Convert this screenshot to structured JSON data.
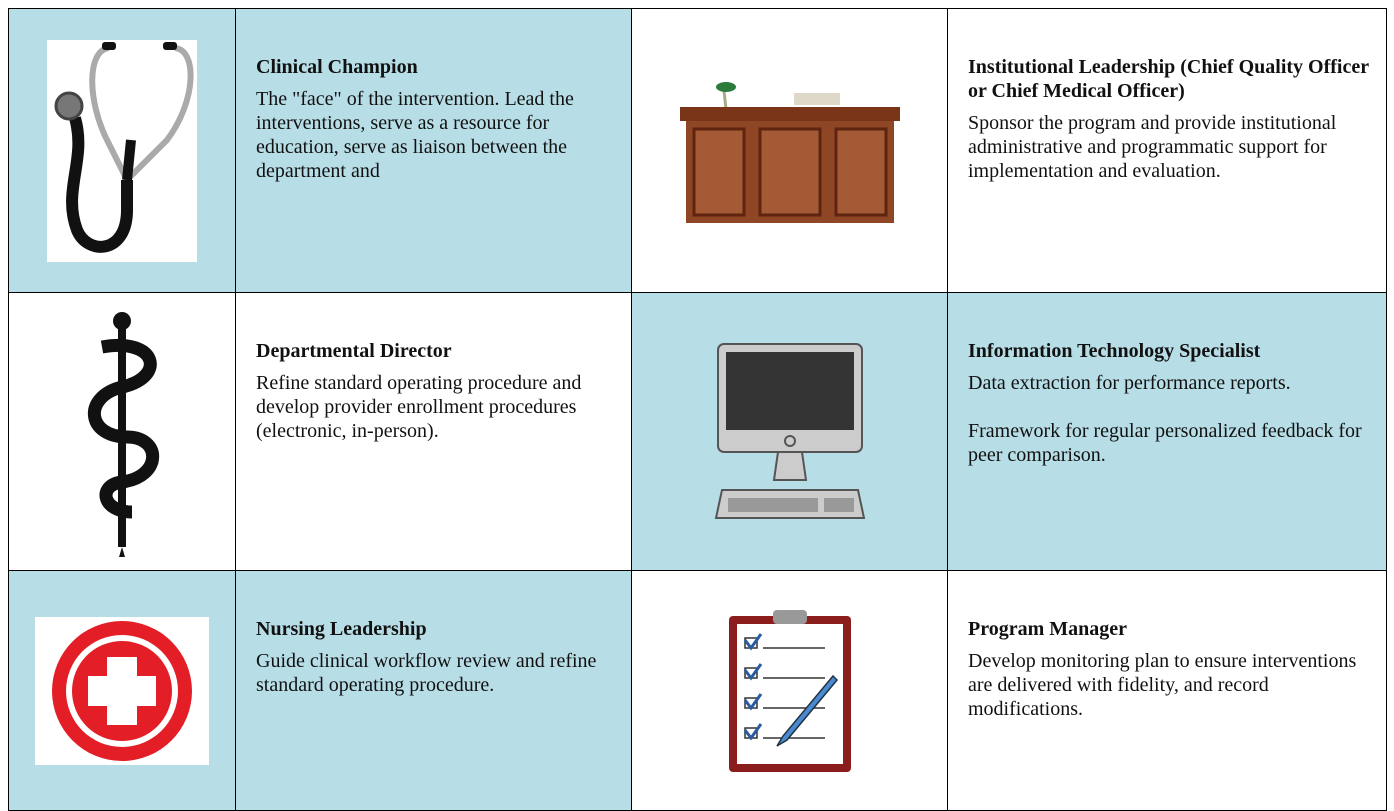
{
  "cells": [
    {
      "title": "Clinical Champion",
      "paragraphs": [
        "The \"face\" of the intervention. Lead the interventions, serve as a resource for education, serve as liaison between the department and"
      ]
    },
    {
      "title": "Institutional Leadership (Chief Quality Officer or Chief Medical Officer)",
      "paragraphs": [
        "Sponsor the program and provide institutional administrative and programmatic support for implementation and evaluation."
      ]
    },
    {
      "title": "Departmental Director",
      "paragraphs": [
        "Refine standard operating procedure and develop provider enrollment procedures (electronic, in-person)."
      ]
    },
    {
      "title": "Information Technology Specialist",
      "paragraphs": [
        "Data extraction for performance reports.",
        "Framework for regular personalized feedback for peer comparison."
      ]
    },
    {
      "title": "Nursing Leadership",
      "paragraphs": [
        "Guide clinical workflow review and refine standard operating procedure."
      ]
    },
    {
      "title": "Program Manager",
      "paragraphs": [
        "Develop monitoring plan to ensure interventions are delivered with fidelity, and record modifications."
      ]
    }
  ]
}
